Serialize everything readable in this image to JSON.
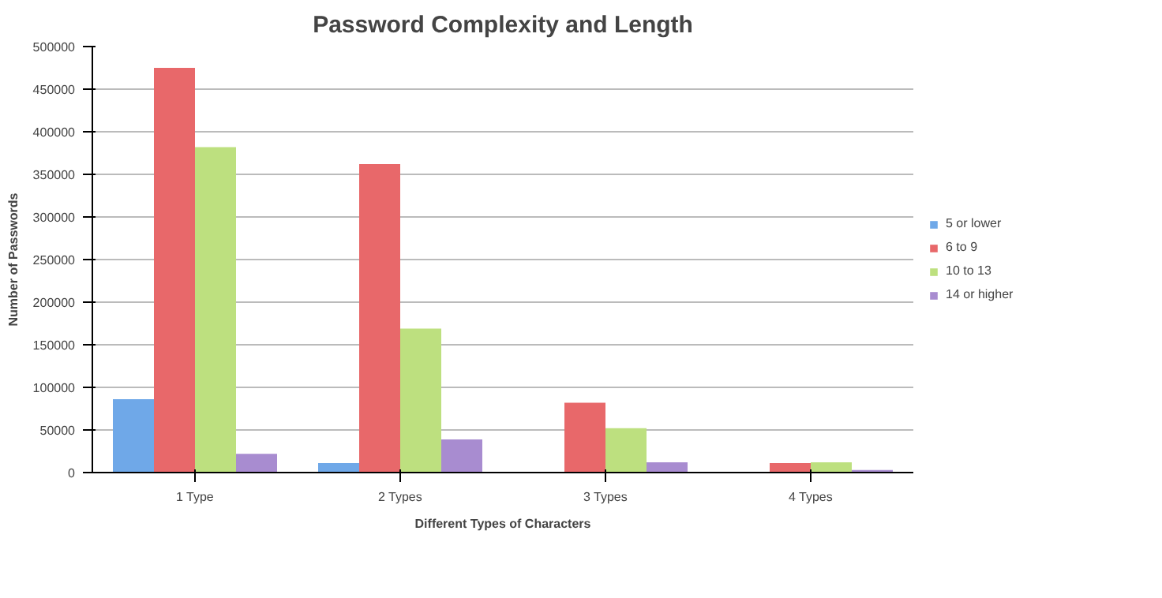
{
  "chart_data": {
    "type": "bar",
    "title": "Password Complexity and Length",
    "xlabel": "Different Types of Characters",
    "ylabel": "Number of Passwords",
    "categories": [
      "1 Type",
      "2 Types",
      "3 Types",
      "4 Types"
    ],
    "series": [
      {
        "name": "5 or lower",
        "color": "#6fa8e8",
        "values": [
          86000,
          11000,
          null,
          null
        ]
      },
      {
        "name": "6 to 9",
        "color": "#e8686a",
        "values": [
          475000,
          362000,
          82000,
          11000
        ]
      },
      {
        "name": "10 to 13",
        "color": "#bde07f",
        "values": [
          382000,
          169000,
          52000,
          12000
        ]
      },
      {
        "name": "14 or higher",
        "color": "#a88cd0",
        "values": [
          22000,
          39000,
          12000,
          3000
        ]
      }
    ],
    "ylim": [
      0,
      500000
    ],
    "yticks": [
      0,
      50000,
      100000,
      150000,
      200000,
      250000,
      300000,
      350000,
      400000,
      450000,
      500000
    ],
    "grid": "y",
    "legend": "right"
  }
}
